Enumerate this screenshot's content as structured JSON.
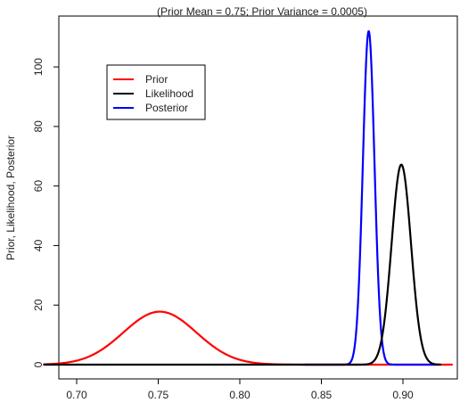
{
  "chart_data": {
    "type": "line",
    "title": "(Prior Mean = 0.75; Prior Variance = 0.0005)",
    "xlabel": "",
    "ylabel": "Prior, Likelihood, Posterior",
    "xlim": [
      0.68,
      0.93
    ],
    "ylim": [
      0,
      112
    ],
    "x_ticks": [
      0.7,
      0.75,
      0.8,
      0.85,
      0.9
    ],
    "x_tick_labels": [
      "0.70",
      "0.75",
      "0.80",
      "0.85",
      "0.90"
    ],
    "y_ticks": [
      0,
      20,
      40,
      60,
      80,
      100
    ],
    "y_tick_labels": [
      "0",
      "20",
      "40",
      "60",
      "80",
      "100"
    ],
    "grid": false,
    "legend_position": "top-left",
    "series": [
      {
        "name": "Prior",
        "color": "#ff0000",
        "kind": "normal",
        "mean": 0.751,
        "peak": 17.8,
        "x_min": 0.68,
        "x_max": 0.93
      },
      {
        "name": "Likelihood",
        "color": "#000000",
        "kind": "normal",
        "mean": 0.899,
        "peak": 67.2,
        "x_min": 0.68,
        "x_max": 0.923
      },
      {
        "name": "Posterior",
        "color": "#0000ff",
        "kind": "normal",
        "mean": 0.879,
        "peak": 112.0,
        "x_min": 0.84,
        "x_max": 0.922
      }
    ]
  }
}
